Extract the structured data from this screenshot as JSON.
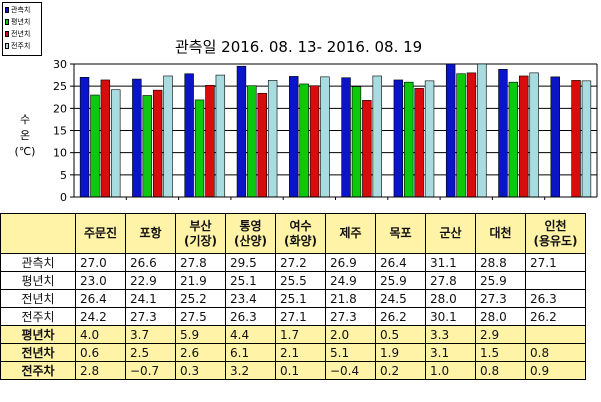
{
  "chart_data": {
    "type": "bar",
    "title": "관측일 2016. 08. 13- 2016. 08. 19",
    "ylabel": "수온 (℃)",
    "ylabel_lines": [
      "수",
      "온",
      "(℃)"
    ],
    "ylim": [
      0,
      30
    ],
    "yticks": [
      "0",
      "5",
      "10",
      "15",
      "20",
      "25",
      "30"
    ],
    "categories": [
      "주문진",
      "포항",
      "부산 (기장)",
      "통영 (산양)",
      "여수 (화양)",
      "제주",
      "목포",
      "군산",
      "대천",
      "인천 (용유도)"
    ],
    "series": [
      {
        "name": "관측치",
        "color": "#0a14c8",
        "values": [
          27.0,
          26.6,
          27.8,
          29.5,
          27.2,
          26.9,
          26.4,
          31.1,
          28.8,
          27.1
        ]
      },
      {
        "name": "평년치",
        "color": "#0ec80e",
        "values": [
          23.0,
          22.9,
          21.9,
          25.1,
          25.5,
          24.9,
          25.9,
          27.8,
          25.9,
          null
        ]
      },
      {
        "name": "전년치",
        "color": "#d80c0c",
        "values": [
          26.4,
          24.1,
          25.2,
          23.4,
          25.1,
          21.8,
          24.5,
          28.0,
          27.3,
          26.3
        ]
      },
      {
        "name": "전주치",
        "color": "#a8dce0",
        "values": [
          24.2,
          27.3,
          27.5,
          26.3,
          27.1,
          27.3,
          26.2,
          30.1,
          28.0,
          26.2
        ]
      }
    ],
    "legend_position": "top-left",
    "grid": true
  },
  "table": {
    "stations": [
      [
        "주문진"
      ],
      [
        "포항"
      ],
      [
        "부산",
        "(기장)"
      ],
      [
        "통영",
        "(산양)"
      ],
      [
        "여수",
        "(화양)"
      ],
      [
        "제주"
      ],
      [
        "목포"
      ],
      [
        "군산"
      ],
      [
        "대천"
      ],
      [
        "인천",
        "(용유도)"
      ]
    ],
    "rows": [
      {
        "label": "관측치",
        "kind": "plain",
        "values": [
          "27.0",
          "26.6",
          "27.8",
          "29.5",
          "27.2",
          "26.9",
          "26.4",
          "31.1",
          "28.8",
          "27.1"
        ]
      },
      {
        "label": "평년치",
        "kind": "plain",
        "values": [
          "23.0",
          "22.9",
          "21.9",
          "25.1",
          "25.5",
          "24.9",
          "25.9",
          "27.8",
          "25.9",
          ""
        ]
      },
      {
        "label": "전년치",
        "kind": "plain",
        "values": [
          "26.4",
          "24.1",
          "25.2",
          "23.4",
          "25.1",
          "21.8",
          "24.5",
          "28.0",
          "27.3",
          "26.3"
        ]
      },
      {
        "label": "전주치",
        "kind": "plain",
        "values": [
          "24.2",
          "27.3",
          "27.5",
          "26.3",
          "27.1",
          "27.3",
          "26.2",
          "30.1",
          "28.0",
          "26.2"
        ]
      },
      {
        "label": "평년차",
        "kind": "diff",
        "values": [
          "4.0",
          "3.7",
          "5.9",
          "4.4",
          "1.7",
          "2.0",
          "0.5",
          "3.3",
          "2.9",
          ""
        ]
      },
      {
        "label": "전년차",
        "kind": "diff",
        "values": [
          "0.6",
          "2.5",
          "2.6",
          "6.1",
          "2.1",
          "5.1",
          "1.9",
          "3.1",
          "1.5",
          "0.8"
        ]
      },
      {
        "label": "전주차",
        "kind": "diff",
        "values": [
          "2.8",
          "−0.7",
          "0.3",
          "3.2",
          "0.1",
          "−0.4",
          "0.2",
          "1.0",
          "0.8",
          "0.9"
        ]
      }
    ]
  }
}
